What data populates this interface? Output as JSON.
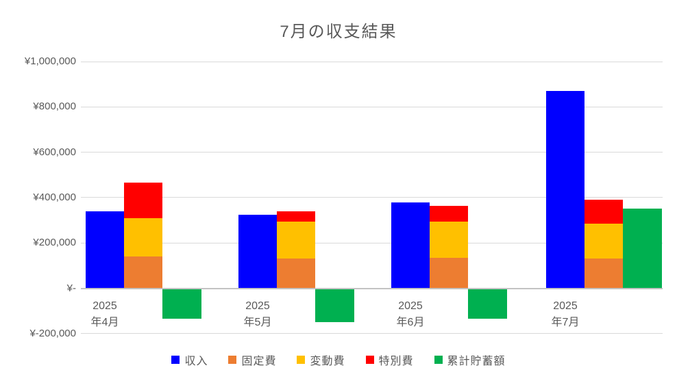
{
  "chart_data": {
    "type": "bar",
    "title": "7月の収支結果",
    "categories": [
      {
        "line1": "2025",
        "line2": "年4月"
      },
      {
        "line1": "2025",
        "line2": "年5月"
      },
      {
        "line1": "2025",
        "line2": "年6月"
      },
      {
        "line1": "2025",
        "line2": "年7月"
      }
    ],
    "series": [
      {
        "key": "income",
        "name": "収入",
        "color": "#0000FF",
        "render": "column",
        "values": [
          340000,
          325000,
          380000,
          870000
        ]
      },
      {
        "key": "fixed-cost",
        "name": "固定費",
        "color": "#ED7D31",
        "render": "stacked",
        "values": [
          140000,
          130000,
          135000,
          130000
        ]
      },
      {
        "key": "variable-cost",
        "name": "変動費",
        "color": "#FFC000",
        "render": "stacked",
        "values": [
          170000,
          165000,
          160000,
          155000
        ]
      },
      {
        "key": "special-cost",
        "name": "特別費",
        "color": "#FF0000",
        "render": "stacked",
        "values": [
          155000,
          45000,
          70000,
          105000
        ]
      },
      {
        "key": "cumulative-savings",
        "name": "累計貯蓄額",
        "color": "#00B050",
        "render": "column",
        "values": [
          -130000,
          -145000,
          -130000,
          350000
        ]
      }
    ],
    "y_axis": {
      "min": -200000,
      "max": 1000000,
      "step": 200000,
      "tick_values": [
        1000000,
        800000,
        600000,
        400000,
        200000,
        0,
        -200000
      ],
      "tick_labels": [
        "¥1,000,000",
        "¥800,000",
        "¥600,000",
        "¥400,000",
        "¥200,000",
        "¥-",
        "¥-200,000"
      ]
    },
    "legend": {
      "position": "bottom",
      "entries": [
        "収入",
        "固定費",
        "変動費",
        "特別費",
        "累計貯蓄額"
      ]
    },
    "grid": true,
    "colors": {
      "text": "#595959",
      "gridline": "#D9D9D9",
      "axis_line": "#C3C3C3",
      "background": "#FFFFFF"
    }
  }
}
